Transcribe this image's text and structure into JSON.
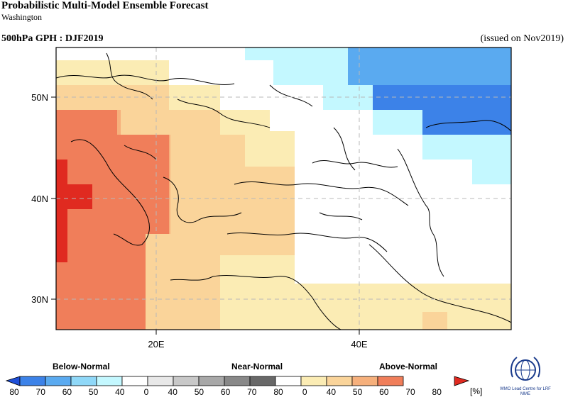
{
  "header": {
    "title": "Probabilistic Multi-Model Ensemble Forecast",
    "subtitle": "Washington",
    "variable_period": "500hPa GPH : DJF2019",
    "issued": "(issued on Nov2019)"
  },
  "map": {
    "region": {
      "lon_min": 9,
      "lon_max": 56,
      "lat_min": 27,
      "lat_max": 55
    },
    "lat_labels": [
      {
        "lat": 50,
        "text": "50N"
      },
      {
        "lat": 40,
        "text": "40N"
      },
      {
        "lat": 30,
        "text": "30N"
      }
    ],
    "lon_labels": [
      {
        "lon": 20,
        "text": "20E"
      },
      {
        "lon": 40,
        "text": "40E"
      }
    ],
    "gridlines": "dashed"
  },
  "legend": {
    "categories": {
      "below": "Below-Normal",
      "near": "Near-Normal",
      "above": "Above-Normal"
    },
    "unit": "[%]",
    "tick_labels": [
      "80",
      "70",
      "60",
      "50",
      "40",
      "0",
      "40",
      "50",
      "60",
      "70",
      "80",
      "0",
      "40",
      "50",
      "60",
      "70",
      "80"
    ],
    "colors": [
      "#1f4fd8",
      "#3c82e8",
      "#5aaaf0",
      "#8fd8f8",
      "#c4f8ff",
      "#ffffff",
      "#e8e8e8",
      "#c8c8c8",
      "#a8a8a8",
      "#888888",
      "#686868",
      "#ffffff",
      "#fbecb4",
      "#fad49a",
      "#f6b07c",
      "#f07e5a",
      "#e02a20"
    ]
  },
  "logo": {
    "text": "WMO Lead Centre for LRF MME",
    "icon": "wmo-logo-icon"
  }
}
